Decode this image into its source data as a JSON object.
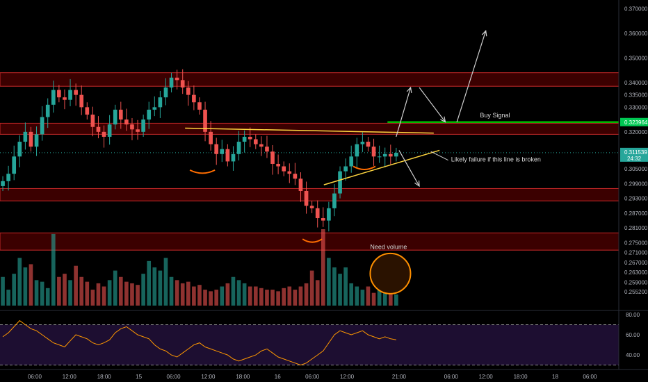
{
  "chart_data": {
    "type": "candlestick",
    "title": "",
    "xlabel": "",
    "ylabel": "",
    "ylim": [
      0.2495,
      0.3735
    ],
    "price_ticks": [
      "0.370000",
      "0.360000",
      "0.350000",
      "0.340000",
      "0.335000",
      "0.330000",
      "0.320000",
      "0.305000",
      "0.299000",
      "0.293000",
      "0.287000",
      "0.281000",
      "0.275000",
      "0.271000",
      "0.267000",
      "0.263000",
      "0.259000",
      "0.255200"
    ],
    "price_tick_values": [
      0.37,
      0.36,
      0.35,
      0.34,
      0.335,
      0.33,
      0.32,
      0.305,
      0.299,
      0.293,
      0.287,
      0.281,
      0.275,
      0.271,
      0.267,
      0.263,
      0.259,
      0.2552
    ],
    "time_ticks": [
      {
        "label": "06:00",
        "t": 6
      },
      {
        "label": "12:00",
        "t": 12
      },
      {
        "label": "18:00",
        "t": 18
      },
      {
        "label": "15",
        "t": 24
      },
      {
        "label": "06:00",
        "t": 30
      },
      {
        "label": "12:00",
        "t": 36
      },
      {
        "label": "18:00",
        "t": 42
      },
      {
        "label": "16",
        "t": 48
      },
      {
        "label": "06:00",
        "t": 54
      },
      {
        "label": "12:00",
        "t": 60
      },
      {
        "label": "21:00",
        "t": 69
      },
      {
        "label": "06:00",
        "t": 78
      },
      {
        "label": "12:00",
        "t": 84
      },
      {
        "label": "18:00",
        "t": 90
      },
      {
        "label": "18",
        "t": 96
      },
      {
        "label": "06:00",
        "t": 102
      }
    ],
    "close_series": [
      0.3,
      0.303,
      0.31,
      0.316,
      0.32,
      0.314,
      0.319,
      0.326,
      0.331,
      0.337,
      0.334,
      0.333,
      0.337,
      0.335,
      0.33,
      0.327,
      0.322,
      0.32,
      0.318,
      0.323,
      0.329,
      0.325,
      0.323,
      0.321,
      0.32,
      0.325,
      0.329,
      0.33,
      0.334,
      0.338,
      0.342,
      0.341,
      0.338,
      0.335,
      0.332,
      0.329,
      0.32,
      0.315,
      0.311,
      0.313,
      0.308,
      0.311,
      0.316,
      0.318,
      0.317,
      0.315,
      0.314,
      0.312,
      0.307,
      0.306,
      0.304,
      0.303,
      0.301,
      0.296,
      0.29,
      0.289,
      0.285,
      0.284,
      0.289,
      0.295,
      0.304,
      0.306,
      0.31,
      0.315,
      0.316,
      0.314,
      0.31,
      0.31,
      0.311,
      0.31,
      0.3115
    ],
    "volume_series": [
      18,
      10,
      20,
      30,
      24,
      26,
      16,
      15,
      11,
      45,
      18,
      20,
      16,
      25,
      18,
      15,
      10,
      14,
      12,
      16,
      22,
      18,
      15,
      14,
      13,
      20,
      28,
      24,
      22,
      30,
      18,
      16,
      14,
      15,
      12,
      13,
      10,
      9,
      10,
      12,
      14,
      18,
      16,
      14,
      12,
      12,
      11,
      10,
      10,
      9,
      11,
      12,
      10,
      12,
      14,
      22,
      16,
      48,
      30,
      24,
      20,
      24,
      14,
      12,
      10,
      12,
      8,
      12,
      10,
      8,
      7
    ],
    "rsi_series": [
      58,
      62,
      68,
      74,
      70,
      66,
      64,
      60,
      56,
      52,
      50,
      48,
      54,
      60,
      58,
      56,
      52,
      50,
      52,
      55,
      62,
      66,
      68,
      64,
      60,
      58,
      56,
      50,
      46,
      44,
      40,
      38,
      42,
      46,
      50,
      52,
      48,
      46,
      44,
      42,
      40,
      36,
      34,
      36,
      38,
      40,
      44,
      46,
      42,
      38,
      36,
      34,
      32,
      30,
      32,
      36,
      40,
      44,
      52,
      60,
      64,
      62,
      60,
      62,
      64,
      60,
      58,
      56,
      58,
      56,
      55
    ],
    "rsi_ticks": [
      "80.00",
      "60.00",
      "40.00"
    ],
    "rsi_tick_values": [
      80,
      60,
      40
    ],
    "rsi_ylim": [
      27,
      82
    ],
    "resistance_zones": [
      [
        0.3385,
        0.344
      ],
      [
        0.319,
        0.3235
      ],
      [
        0.292,
        0.297
      ],
      [
        0.272,
        0.279
      ]
    ],
    "current_price": "0.311539",
    "current_price_value": 0.311539,
    "countdown": "24:32",
    "buy_signal_price": "0.323964",
    "buy_signal_price_value": 0.323964,
    "annotations": {
      "buy_signal": "Buy Signal",
      "failure": "Likely failure if this line is broken",
      "volume": "Need volume"
    }
  },
  "colors": {
    "background": "#000000",
    "zone_fill": "#6b0000",
    "zone_stroke": "#c62828",
    "up_candle": "#26a69a",
    "down_candle": "#ef5350",
    "trendline": "#ffd740",
    "buy_line": "#00e600",
    "price_tag": "#26a69a",
    "buy_tag": "#00c853",
    "rsi_line": "#ff9800",
    "rsi_band": "#1a0f2e",
    "volume_circle": "#ff8f00"
  }
}
